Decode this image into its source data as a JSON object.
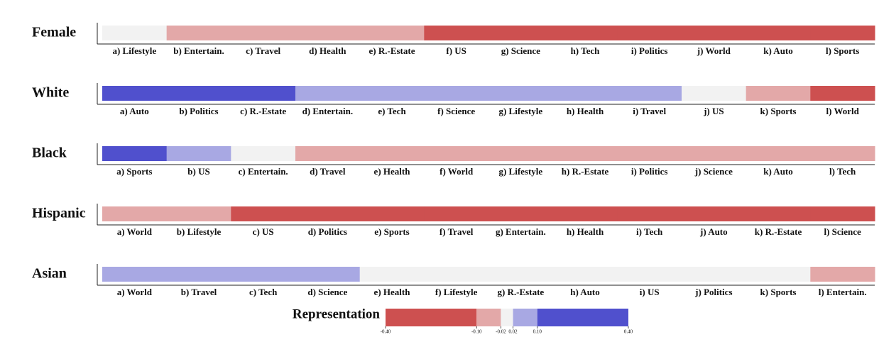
{
  "chart_data": {
    "type": "heatmap",
    "rows": [
      {
        "label": "Female",
        "cells": [
          {
            "label": "a) Lifestyle",
            "color": "#f2f2f2"
          },
          {
            "label": "b) Entertain.",
            "color": "#e3a8a8"
          },
          {
            "label": "c) Travel",
            "color": "#e3a8a8"
          },
          {
            "label": "d) Health",
            "color": "#e3a8a8"
          },
          {
            "label": "e) R.-Estate",
            "color": "#e3a8a8"
          },
          {
            "label": "f) US",
            "color": "#cd5050"
          },
          {
            "label": "g) Science",
            "color": "#cd5050"
          },
          {
            "label": "h) Tech",
            "color": "#cd5050"
          },
          {
            "label": "i) Politics",
            "color": "#cd5050"
          },
          {
            "label": "j) World",
            "color": "#cd5050"
          },
          {
            "label": "k) Auto",
            "color": "#cd5050"
          },
          {
            "label": "l) Sports",
            "color": "#cd5050"
          }
        ]
      },
      {
        "label": "White",
        "cells": [
          {
            "label": "a) Auto",
            "color": "#5050cd"
          },
          {
            "label": "b) Politics",
            "color": "#5050cd"
          },
          {
            "label": "c) R.-Estate",
            "color": "#5050cd"
          },
          {
            "label": "d) Entertain.",
            "color": "#a8a8e3"
          },
          {
            "label": "e) Tech",
            "color": "#a8a8e3"
          },
          {
            "label": "f) Science",
            "color": "#a8a8e3"
          },
          {
            "label": "g) Lifestyle",
            "color": "#a8a8e3"
          },
          {
            "label": "h) Health",
            "color": "#a8a8e3"
          },
          {
            "label": "i) Travel",
            "color": "#a8a8e3"
          },
          {
            "label": "j) US",
            "color": "#f2f2f2"
          },
          {
            "label": "k) Sports",
            "color": "#e3a8a8"
          },
          {
            "label": "l) World",
            "color": "#cd5050"
          }
        ]
      },
      {
        "label": "Black",
        "cells": [
          {
            "label": "a) Sports",
            "color": "#5050cd"
          },
          {
            "label": "b) US",
            "color": "#a8a8e3"
          },
          {
            "label": "c) Entertain.",
            "color": "#f2f2f2"
          },
          {
            "label": "d) Travel",
            "color": "#e3a8a8"
          },
          {
            "label": "e) Health",
            "color": "#e3a8a8"
          },
          {
            "label": "f) World",
            "color": "#e3a8a8"
          },
          {
            "label": "g) Lifestyle",
            "color": "#e3a8a8"
          },
          {
            "label": "h) R.-Estate",
            "color": "#e3a8a8"
          },
          {
            "label": "i) Politics",
            "color": "#e3a8a8"
          },
          {
            "label": "j) Science",
            "color": "#e3a8a8"
          },
          {
            "label": "k) Auto",
            "color": "#e3a8a8"
          },
          {
            "label": "l) Tech",
            "color": "#e3a8a8"
          }
        ]
      },
      {
        "label": "Hispanic",
        "cells": [
          {
            "label": "a) World",
            "color": "#e3a8a8"
          },
          {
            "label": "b) Lifestyle",
            "color": "#e3a8a8"
          },
          {
            "label": "c) US",
            "color": "#cd5050"
          },
          {
            "label": "d) Politics",
            "color": "#cd5050"
          },
          {
            "label": "e) Sports",
            "color": "#cd5050"
          },
          {
            "label": "f) Travel",
            "color": "#cd5050"
          },
          {
            "label": "g) Entertain.",
            "color": "#cd5050"
          },
          {
            "label": "h) Health",
            "color": "#cd5050"
          },
          {
            "label": "i) Tech",
            "color": "#cd5050"
          },
          {
            "label": "j) Auto",
            "color": "#cd5050"
          },
          {
            "label": "k) R.-Estate",
            "color": "#cd5050"
          },
          {
            "label": "l) Science",
            "color": "#cd5050"
          }
        ]
      },
      {
        "label": "Asian",
        "cells": [
          {
            "label": "a) World",
            "color": "#a8a8e3"
          },
          {
            "label": "b) Travel",
            "color": "#a8a8e3"
          },
          {
            "label": "c) Tech",
            "color": "#a8a8e3"
          },
          {
            "label": "d) Science",
            "color": "#a8a8e3"
          },
          {
            "label": "e) Health",
            "color": "#f2f2f2"
          },
          {
            "label": "f) Lifestyle",
            "color": "#f2f2f2"
          },
          {
            "label": "g) R.-Estate",
            "color": "#f2f2f2"
          },
          {
            "label": "h) Auto",
            "color": "#f2f2f2"
          },
          {
            "label": "i) US",
            "color": "#f2f2f2"
          },
          {
            "label": "j) Politics",
            "color": "#f2f2f2"
          },
          {
            "label": "k) Sports",
            "color": "#f2f2f2"
          },
          {
            "label": "l) Entertain.",
            "color": "#e3a8a8"
          }
        ]
      }
    ],
    "colorbar": {
      "title": "Representation",
      "lim": [
        -0.4,
        0.4
      ],
      "ticks": [
        {
          "value": -0.4,
          "label": "-0.40"
        },
        {
          "value": -0.1,
          "label": "-0.10"
        },
        {
          "value": -0.02,
          "label": "-0.02"
        },
        {
          "value": 0.02,
          "label": "0.02"
        },
        {
          "value": 0.1,
          "label": "0.10"
        },
        {
          "value": 0.4,
          "label": "0.40"
        }
      ],
      "colors": [
        "#cd5050",
        "#e3a8a8",
        "#f2f2f2",
        "#a8a8e3",
        "#5050cd"
      ]
    }
  }
}
